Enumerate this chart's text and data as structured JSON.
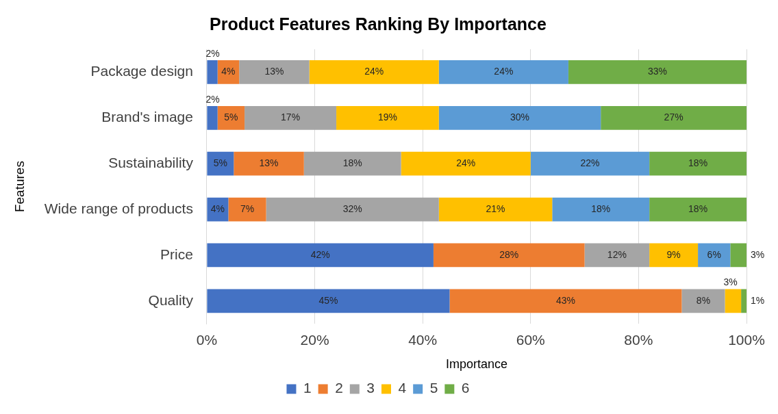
{
  "chart_data": {
    "type": "bar",
    "orientation": "horizontal",
    "stacked": true,
    "title": "Product Features Ranking By Importance",
    "xlabel": "Importance",
    "ylabel": "Features",
    "categories": [
      "Package design",
      "Brand's image",
      "Sustainability",
      "Wide range of products",
      "Price",
      "Quality"
    ],
    "series": [
      {
        "name": "1",
        "color": "#4472c4",
        "values": [
          2,
          2,
          5,
          4,
          42,
          45
        ],
        "value_labels": [
          "2%",
          "2%",
          "5%",
          "4%",
          "42%",
          "45%"
        ]
      },
      {
        "name": "2",
        "color": "#ed7d31",
        "values": [
          4,
          5,
          13,
          7,
          28,
          43
        ],
        "value_labels": [
          "4%",
          "5%",
          "13%",
          "7%",
          "28%",
          "43%"
        ]
      },
      {
        "name": "3",
        "color": "#a5a5a5",
        "values": [
          13,
          17,
          18,
          32,
          12,
          8
        ],
        "value_labels": [
          "13%",
          "17%",
          "18%",
          "32%",
          "12%",
          "8%"
        ]
      },
      {
        "name": "4",
        "color": "#ffc000",
        "values": [
          24,
          19,
          24,
          21,
          9,
          3
        ],
        "value_labels": [
          "24%",
          "19%",
          "24%",
          "21%",
          "9%",
          "3%"
        ]
      },
      {
        "name": "5",
        "color": "#5b9bd5",
        "values": [
          24,
          30,
          22,
          18,
          6,
          0
        ],
        "value_labels": [
          "24%",
          "30%",
          "22%",
          "18%",
          "6%",
          null
        ]
      },
      {
        "name": "6",
        "color": "#70ad47",
        "values": [
          33,
          27,
          18,
          18,
          3,
          1
        ],
        "value_labels": [
          "33%",
          "27%",
          "18%",
          "18%",
          "3%",
          "1%"
        ]
      }
    ],
    "xlim": [
      0,
      100
    ],
    "xticks": [
      {
        "value": 0,
        "label": "0%"
      },
      {
        "value": 20,
        "label": "20%"
      },
      {
        "value": 40,
        "label": "40%"
      },
      {
        "value": 60,
        "label": "60%"
      },
      {
        "value": 80,
        "label": "80%"
      },
      {
        "value": 100,
        "label": "100%"
      }
    ],
    "grid": "x",
    "legend": "bottom"
  }
}
